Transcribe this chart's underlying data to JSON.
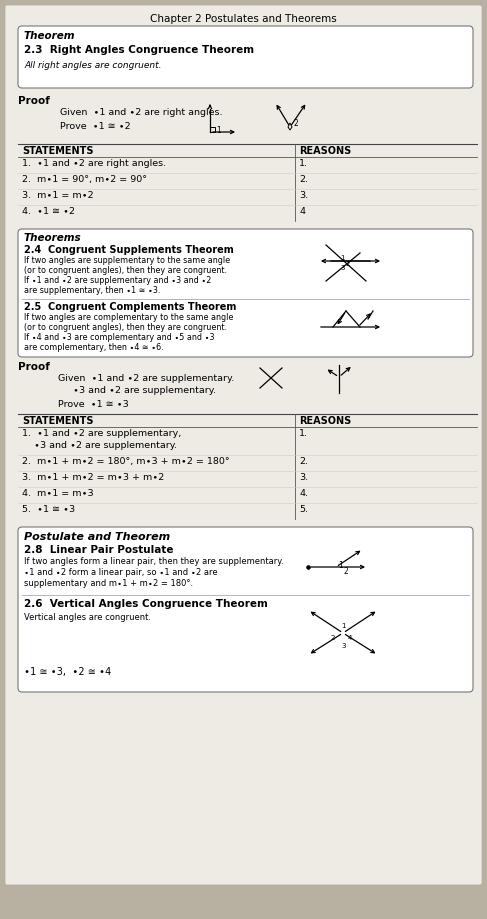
{
  "title": "Chapter 2 Postulates and Theorems",
  "bg_color": "#b8b0a0",
  "page_bg": "#eeebe4",
  "box_bg": "#ffffff",
  "theorem_box": {
    "label": "Theorem",
    "number": "2.3",
    "name": "Right Angles Congruence Theorem",
    "body": "All right angles are congruent."
  },
  "proof1_label": "Proof",
  "proof1_given": "∙1 and ∙2 are right angles.",
  "proof1_prove": "∙1 ≅ ∙2",
  "table1_headers": [
    "STATEMENTS",
    "REASONS"
  ],
  "table1_rows": [
    [
      "1.  ∙1 and ∙2 are right angles.",
      "1."
    ],
    [
      "2.  m∙1 = 90°, m∙2 = 90°",
      "2."
    ],
    [
      "3.  m∙1 = m∙2",
      "3."
    ],
    [
      "4.  ∙1 ≅ ∙2",
      "4"
    ]
  ],
  "theorems_box_label": "Theorems",
  "th24_num": "2.4",
  "th24_name": "Congruent Supplements Theorem",
  "th24_lines": [
    "If two angles are supplementary to the same angle",
    "(or to congruent angles), then they are congruent.",
    "If ∙1 and ∙2 are supplementary and ∙3 and ∙2",
    "are supplementary, then ∙1 ≅ ∙3."
  ],
  "th25_num": "2.5",
  "th25_name": "Congruent Complements Theorem",
  "th25_lines": [
    "If two angles are complementary to the same angle",
    "(or to congruent angles), then they are congruent.",
    "If ∙4 and ∙3 are complementary and ∙5 and ∙3",
    "are complementary, then ∙4 ≅ ∙6."
  ],
  "proof2_label": "Proof",
  "proof2_given1": "∙1 and ∙2 are supplementary.",
  "proof2_given2": "∙3 and ∙2 are supplementary.",
  "proof2_prove": "∙1 ≅ ∙3",
  "table2_headers": [
    "STATEMENTS",
    "REASONS"
  ],
  "table2_rows": [
    [
      "1.  ∙1 and ∙2 are supplementary,",
      "1."
    ],
    [
      "    ∙3 and ∙2 are supplementary.",
      ""
    ],
    [
      "2.  m∙1 + m∙2 = 180°, m∙3 + m∙2 = 180°",
      "2."
    ],
    [
      "3.  m∙1 + m∙2 = m∙3 + m∙2",
      "3."
    ],
    [
      "4.  m∙1 = m∙3",
      "4."
    ],
    [
      "5.  ∙1 ≅ ∙3",
      "5."
    ]
  ],
  "postulate_box_label": "Postulate and Theorem",
  "th28_num": "2.8",
  "th28_name": "Linear Pair Postulate",
  "th28_lines": [
    "If two angles form a linear pair, then they are supplementary.",
    "∙1 and ∙2 form a linear pair, so ∙1 and ∙2 are",
    "supplementary and m∙1 + m∙2 = 180°."
  ],
  "th26_num": "2.6",
  "th26_name": "Vertical Angles Congruence Theorem",
  "th26_lines": [
    "Vertical angles are congruent."
  ],
  "th26_bottom": "∙1 ≅ ∙3,  ∙2 ≅ ∙4"
}
